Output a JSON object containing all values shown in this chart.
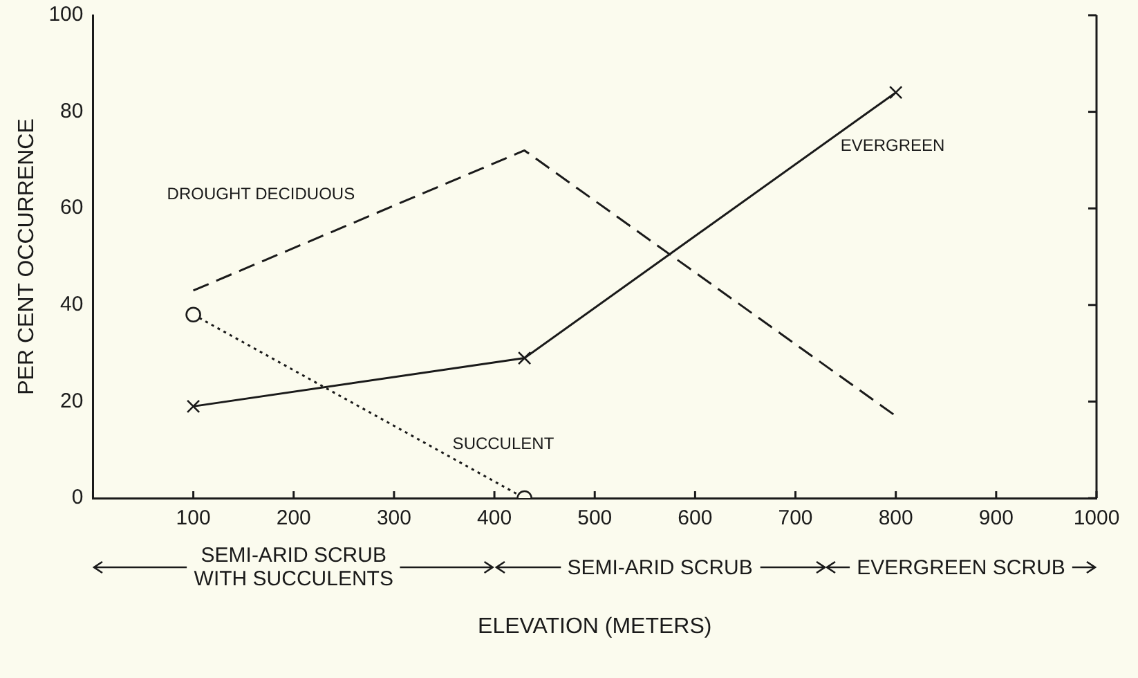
{
  "chart_data": {
    "type": "line",
    "xlabel": "ELEVATION (METERS)",
    "ylabel": "PER CENT OCCURRENCE",
    "xlim": [
      0,
      1000
    ],
    "xticks": [
      {
        "value": 0,
        "label": null
      },
      100,
      200,
      300,
      400,
      500,
      600,
      700,
      800,
      900,
      1000
    ],
    "ylim": [
      0,
      100
    ],
    "yticks": [
      0,
      20,
      40,
      60,
      80,
      100
    ],
    "grid": false,
    "legend": false,
    "series": [
      {
        "name": "DROUGHT DECIDUOUS",
        "color": "#1a1a1a",
        "x": [
          100,
          430,
          800
        ],
        "values": [
          43,
          72,
          17
        ],
        "line_style": "dashed",
        "marker": "none"
      },
      {
        "name": "EVERGREEN",
        "color": "#1a1a1a",
        "x": [
          100,
          430,
          800
        ],
        "values": [
          19,
          29,
          84
        ],
        "line_style": "solid",
        "marker": "cross"
      },
      {
        "name": "SUCCULENT",
        "color": "#1a1a1a",
        "x": [
          100,
          430
        ],
        "values": [
          38,
          0
        ],
        "line_style": "dotted",
        "marker": "circle"
      }
    ],
    "annotations": [
      "SEMI-ARID SCRUB\nWITH SUCCULENTS",
      "SEMI-ARID SCRUB",
      "EVERGREEN SCRUB"
    ]
  }
}
